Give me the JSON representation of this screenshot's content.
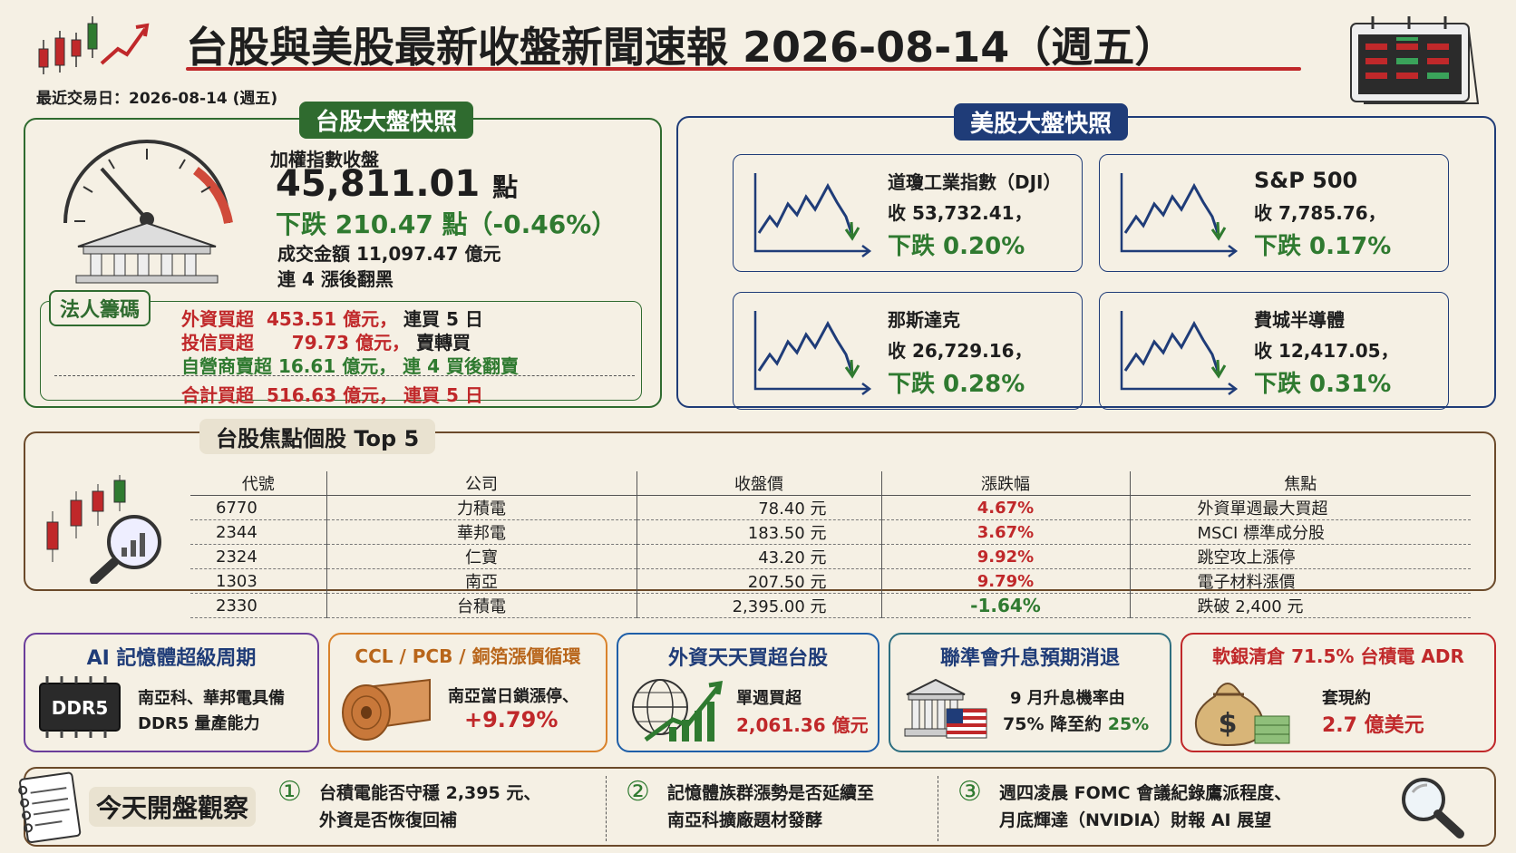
{
  "header": {
    "title": "台股與美股最新收盤新聞速報 2026-08-14（週五）",
    "trade_date": "最近交易日：2026-08-14 (週五)"
  },
  "tw_market": {
    "section_title": "台股大盤快照",
    "index_label": "加權指數收盤",
    "index_value": "45,811.01",
    "index_unit": "點",
    "change": "下跌 210.47 點（-0.46%）",
    "turnover": "成交金額  11,097.47 億元",
    "streak": "連 4 漲後翻黑"
  },
  "institutional": {
    "title": "法人籌碼",
    "rows": [
      {
        "label": "外資買超",
        "amount": "453.51 億元，",
        "note": "連買 5 日"
      },
      {
        "label": "投信買超",
        "amount": "  79.73 億元，",
        "note": "賣轉買"
      },
      {
        "label": "自營商賣超",
        "amount": "16.61 億元，",
        "note": "連 4 買後翻賣"
      }
    ],
    "total": {
      "label": "合計買超",
      "amount": "516.63 億元，",
      "note": "連買 5 日"
    }
  },
  "us_market": {
    "section_title": "美股大盤快照",
    "cards": [
      {
        "name": "道瓊工業指數（DJI）",
        "close": "收 53,732.41，",
        "change": "下跌 0.20%"
      },
      {
        "name": "S&P 500",
        "close": "收 7,785.76，",
        "change": "下跌 0.17%"
      },
      {
        "name": "那斯達克",
        "close": "收 26,729.16，",
        "change": "下跌 0.28%"
      },
      {
        "name": "費城半導體",
        "close": "收 12,417.05，",
        "change": "下跌 0.31%"
      }
    ]
  },
  "focus_stocks": {
    "title": "台股焦點個股 Top 5",
    "columns": [
      "代號",
      "公司",
      "收盤價",
      "漲跌幅",
      "焦點"
    ],
    "rows": [
      {
        "code": "6770",
        "company": "力積電",
        "close": "78.40 元",
        "change": "4.67%",
        "focus": "外資單週最大買超"
      },
      {
        "code": "2344",
        "company": "華邦電",
        "close": "183.50 元",
        "change": "3.67%",
        "focus": "MSCI 標準成分股"
      },
      {
        "code": "2324",
        "company": "仁寶",
        "close": "43.20 元",
        "change": "9.92%",
        "focus": "跳空攻上漲停"
      },
      {
        "code": "1303",
        "company": "南亞",
        "close": "207.50 元",
        "change": "9.79%",
        "focus": "電子材料漲價"
      },
      {
        "code": "2330",
        "company": "台積電",
        "close": "2,395.00 元",
        "change": "-1.64%",
        "focus": "跌破 2,400 元"
      }
    ]
  },
  "themes": [
    {
      "title": "AI 記憶體超級周期",
      "chip_label": "DDR5",
      "line1": "南亞科、華邦電具備",
      "line2": "DDR5 量產能力",
      "color": "#6a3d9a"
    },
    {
      "title": "CCL / PCB / 銅箔漲價循環",
      "line1": "南亞當日鎖漲停、",
      "line2": "+9.79%",
      "color": "#d9822b"
    },
    {
      "title": "外資天天買超台股",
      "line1": "單週買超",
      "line2": "2,061.36 億元",
      "color": "#1f5fa8"
    },
    {
      "title": "聯準會升息預期消退",
      "line1": "9 月升息機率由",
      "line2_a": "75% 降至約 ",
      "line2_b": "25%",
      "color": "#2e6f80"
    },
    {
      "title": "軟銀清倉 71.5% 台積電 ADR",
      "money_label": "$",
      "line1": "套現約",
      "line2": "2.7 億美元",
      "color": "#c0282a"
    }
  ],
  "watch": {
    "title": "今天開盤觀察",
    "items": [
      {
        "num": "①",
        "line1": "台積電能否守穩 2,395 元、",
        "line2": "外資是否恢復回補"
      },
      {
        "num": "②",
        "line1": "記憶體族群漲勢是否延續至",
        "line2": "南亞科擴廠題材發酵"
      },
      {
        "num": "③",
        "line1": "週四凌晨 FOMC 會議紀錄鷹派程度、",
        "line2": "月底輝達（NVIDIA）財報 AI 展望"
      }
    ]
  },
  "colors": {
    "up": "#c0282a",
    "down": "#2f7a30",
    "tw_border": "#2f6b2f",
    "us_border": "#1f3c78"
  }
}
